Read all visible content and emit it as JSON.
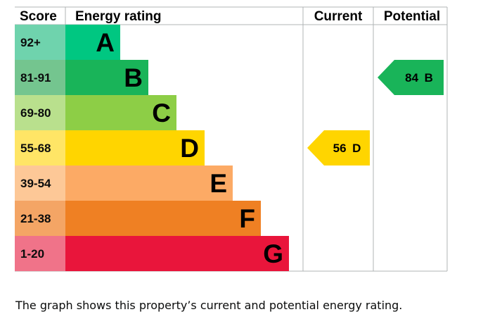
{
  "chart_data": {
    "type": "table",
    "headers": {
      "score": "Score",
      "rating": "Energy rating",
      "current": "Current",
      "potential": "Potential"
    },
    "bands": [
      {
        "letter": "A",
        "range": "92+",
        "color": "#00c781",
        "score_bg": "#6fd3ad"
      },
      {
        "letter": "B",
        "range": "81-91",
        "color": "#19b459",
        "score_bg": "#74c58f"
      },
      {
        "letter": "C",
        "range": "69-80",
        "color": "#8dce46",
        "score_bg": "#b9e08d"
      },
      {
        "letter": "D",
        "range": "55-68",
        "color": "#ffd500",
        "score_bg": "#ffe566"
      },
      {
        "letter": "E",
        "range": "39-54",
        "color": "#fcaa65",
        "score_bg": "#fdc897"
      },
      {
        "letter": "F",
        "range": "21-38",
        "color": "#ef8023",
        "score_bg": "#f4a565"
      },
      {
        "letter": "G",
        "range": "1-20",
        "color": "#e9153b",
        "score_bg": "#f07389"
      }
    ],
    "current": {
      "value": 56,
      "band": "D",
      "label": "56 D",
      "color": "#ffd500"
    },
    "potential": {
      "value": 84,
      "band": "B",
      "label": "84 B",
      "color": "#19b459"
    }
  },
  "caption": "The graph shows this property’s current and potential energy rating."
}
